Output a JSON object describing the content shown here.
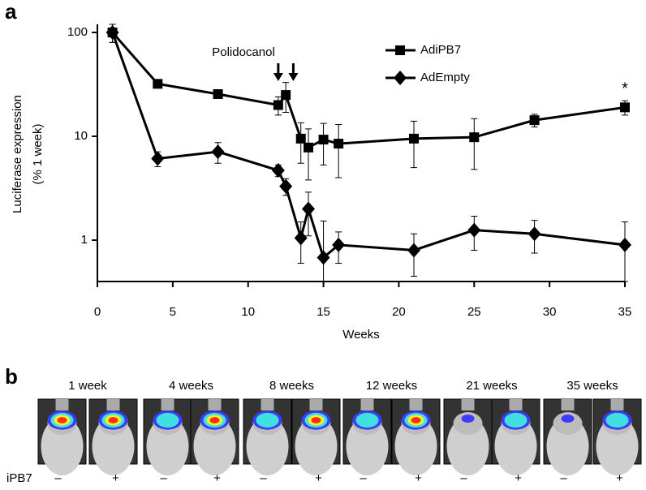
{
  "panel_labels": [
    "a",
    "b"
  ],
  "chart_data": {
    "type": "line",
    "ylabel": [
      "Luciferase expression",
      "(% 1 week)"
    ],
    "xlabel": "Weeks",
    "annotations": [
      "Polidocanol",
      "*"
    ],
    "arrows_at": [
      12,
      13
    ],
    "star_at": 35,
    "log_y": true,
    "legend": "upper right",
    "x": [
      1,
      4,
      8,
      12,
      12.5,
      13.5,
      14,
      15,
      16,
      21,
      25,
      29,
      35
    ],
    "series": [
      {
        "name": "AdiPB7",
        "marker": "square",
        "color": "#000000",
        "values": [
          100,
          32,
          25.5,
          20,
          25,
          9.5,
          7.8,
          9.3,
          8.5,
          9.5,
          9.8,
          14.3,
          19
        ],
        "errors": [
          20,
          2,
          1.5,
          4,
          8,
          4,
          4,
          4,
          4.5,
          4.5,
          5,
          2,
          3
        ]
      },
      {
        "name": "AdEmpty",
        "marker": "diamond",
        "color": "#000000",
        "values": [
          100,
          6.1,
          7.1,
          4.7,
          3.3,
          1.05,
          2,
          0.68,
          0.9,
          0.8,
          1.25,
          1.15,
          0.9
        ],
        "errors": [
          20,
          1,
          1.6,
          0.6,
          0.6,
          0.45,
          0.9,
          0.85,
          0.3,
          0.35,
          0.45,
          0.4,
          0.6
        ]
      }
    ],
    "xlim": [
      0,
      35
    ],
    "xticks": [
      0,
      5,
      10,
      15,
      20,
      25,
      30,
      35
    ],
    "ylim": [
      0.4,
      100
    ],
    "yticks": [
      1,
      10,
      100
    ]
  },
  "image_panel": {
    "time_labels": [
      "1 week",
      "4 weeks",
      "8 weeks",
      "12 weeks",
      "21 weeks",
      "35 weeks"
    ],
    "row_label": "iPB7",
    "signs": [
      "–",
      "+",
      "–",
      "+",
      "–",
      "+",
      "–",
      "+",
      "–",
      "+",
      "–",
      "+"
    ]
  }
}
